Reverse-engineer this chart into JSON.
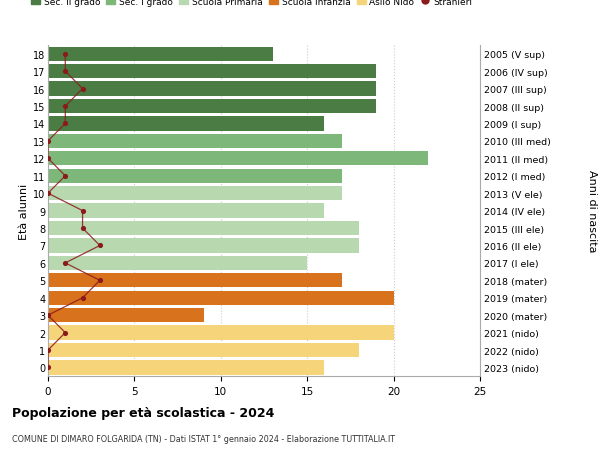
{
  "ages": [
    18,
    17,
    16,
    15,
    14,
    13,
    12,
    11,
    10,
    9,
    8,
    7,
    6,
    5,
    4,
    3,
    2,
    1,
    0
  ],
  "right_labels": [
    "2005 (V sup)",
    "2006 (IV sup)",
    "2007 (III sup)",
    "2008 (II sup)",
    "2009 (I sup)",
    "2010 (III med)",
    "2011 (II med)",
    "2012 (I med)",
    "2013 (V ele)",
    "2014 (IV ele)",
    "2015 (III ele)",
    "2016 (II ele)",
    "2017 (I ele)",
    "2018 (mater)",
    "2019 (mater)",
    "2020 (mater)",
    "2021 (nido)",
    "2022 (nido)",
    "2023 (nido)"
  ],
  "bar_values": [
    13,
    19,
    19,
    19,
    16,
    17,
    22,
    17,
    17,
    16,
    18,
    18,
    15,
    17,
    20,
    9,
    20,
    18,
    16
  ],
  "bar_colors": [
    "#4a7c44",
    "#4a7c44",
    "#4a7c44",
    "#4a7c44",
    "#4a7c44",
    "#7db87a",
    "#7db87a",
    "#7db87a",
    "#b8d8b0",
    "#b8d8b0",
    "#b8d8b0",
    "#b8d8b0",
    "#b8d8b0",
    "#d9721c",
    "#d9721c",
    "#d9721c",
    "#f5d47a",
    "#f5d47a",
    "#f5d47a"
  ],
  "stranieri_values": [
    1,
    1,
    2,
    1,
    1,
    0,
    0,
    1,
    0,
    2,
    2,
    3,
    1,
    3,
    2,
    0,
    1,
    0,
    0
  ],
  "stranieri_color": "#8b1a1a",
  "legend_items": [
    {
      "label": "Sec. II grado",
      "color": "#4a7c44"
    },
    {
      "label": "Sec. I grado",
      "color": "#7db87a"
    },
    {
      "label": "Scuola Primaria",
      "color": "#b8d8b0"
    },
    {
      "label": "Scuola Infanzia",
      "color": "#d9721c"
    },
    {
      "label": "Asilo Nido",
      "color": "#f5d47a"
    },
    {
      "label": "Stranieri",
      "color": "#8b1a1a"
    }
  ],
  "ylabel_left": "Età alunni",
  "ylabel_right": "Anni di nascita",
  "title": "Popolazione per età scolastica - 2024",
  "subtitle": "COMUNE DI DIMARO FOLGARIDA (TN) - Dati ISTAT 1° gennaio 2024 - Elaborazione TUTTITALIA.IT",
  "xlim": [
    0,
    25
  ],
  "xticks": [
    0,
    5,
    10,
    15,
    20,
    25
  ],
  "background_color": "#ffffff",
  "grid_color": "#cccccc"
}
